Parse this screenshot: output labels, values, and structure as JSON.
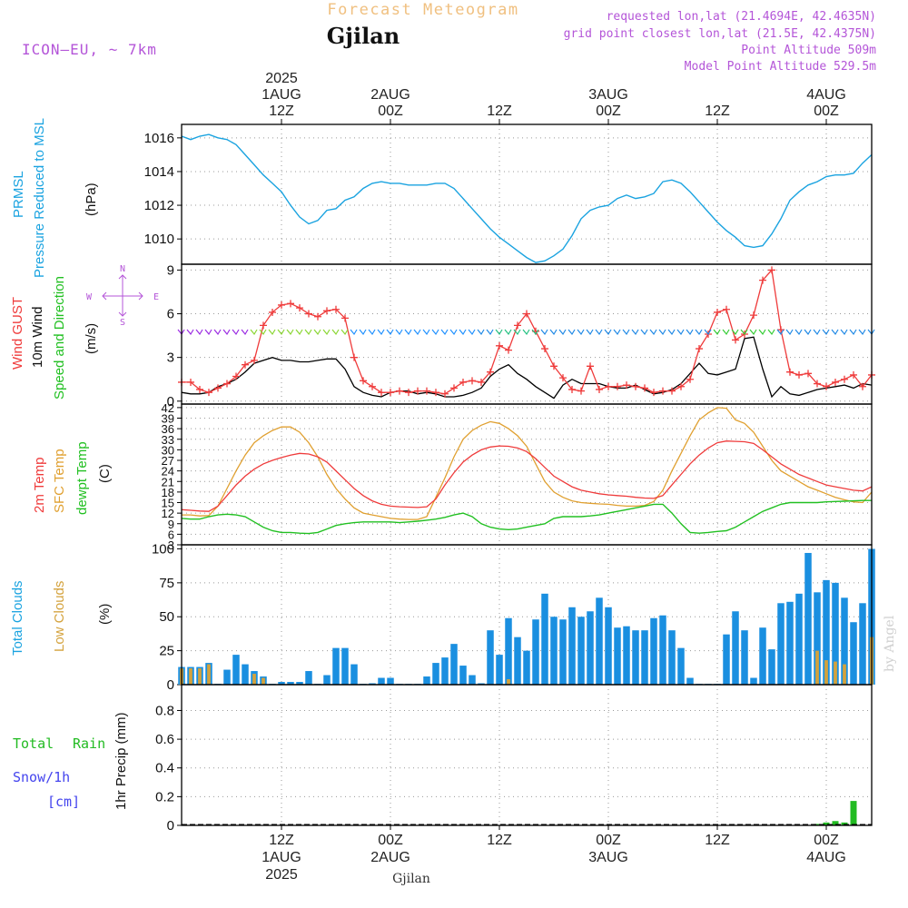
{
  "header": {
    "chart_title": "Forecast Meteogram",
    "location": "Gjilan",
    "model": "ICON–EU, ~ 7km",
    "requested": "requested lon,lat (21.4694E, 42.4635N)",
    "grid_point": "grid point closest lon,lat (21.5E, 42.4375N)",
    "point_altitude": "Point Altitude 509m",
    "model_altitude": "Model Point Altitude 529.5m",
    "footer_location": "Gjilan",
    "watermark": "by Angel"
  },
  "colors": {
    "pressure": "#1aa3e0",
    "gust": "#ef3b3b",
    "wind": "#000000",
    "wind_arrows": "#33cc33",
    "temp2m": "#ef3b3b",
    "sfc_temp": "#e0a030",
    "dewpoint": "#22c022",
    "total_clouds": "#1a8fe0",
    "low_clouds": "#d4a23c",
    "rain": "#22bb22",
    "snow": "#4444ee",
    "title_orange": "#f0c080",
    "purple": "#b455d8"
  },
  "time_axis": {
    "top_ticks": [
      {
        "hour": 12,
        "lines": [
          "2025",
          "1AUG",
          "12Z"
        ]
      },
      {
        "hour": 24,
        "lines": [
          "2AUG",
          "00Z"
        ]
      },
      {
        "hour": 36,
        "lines": [
          "12Z"
        ]
      },
      {
        "hour": 48,
        "lines": [
          "3AUG",
          "00Z"
        ]
      },
      {
        "hour": 60,
        "lines": [
          "12Z"
        ]
      },
      {
        "hour": 72,
        "lines": [
          "4AUG",
          "00Z"
        ]
      }
    ],
    "bottom_ticks": [
      {
        "hour": 12,
        "lines": [
          "12Z",
          "1AUG",
          "2025"
        ]
      },
      {
        "hour": 24,
        "lines": [
          "00Z",
          "2AUG"
        ]
      },
      {
        "hour": 36,
        "lines": [
          "12Z"
        ]
      },
      {
        "hour": 48,
        "lines": [
          "00Z",
          "3AUG"
        ]
      },
      {
        "hour": 60,
        "lines": [
          "12Z"
        ]
      },
      {
        "hour": 72,
        "lines": [
          "00Z",
          "4AUG"
        ]
      }
    ],
    "x_range_hours": [
      1,
      77
    ]
  },
  "panels": {
    "pressure": {
      "labels": [
        "PRMSL",
        "Pressure Reduced to MSL",
        "(hPa)"
      ],
      "ticks": [
        "1010",
        "1012",
        "1014",
        "1016"
      ]
    },
    "wind": {
      "labels": [
        "Wind GUST",
        "10m Wind",
        "Speed and Direction",
        "(m/s)"
      ],
      "compass": {
        "n": "N",
        "s": "S",
        "w": "W",
        "e": "E"
      },
      "ticks": [
        "0",
        "3",
        "6",
        "9"
      ]
    },
    "temp": {
      "labels": [
        "2m Temp",
        "SFC Temp",
        "dewpt Temp",
        "(C)"
      ],
      "ticks": [
        "3",
        "6",
        "9",
        "12",
        "15",
        "18",
        "21",
        "24",
        "27",
        "30",
        "33",
        "36",
        "39",
        "42"
      ]
    },
    "clouds": {
      "labels": [
        "Total Clouds",
        "Low Clouds",
        "(%)"
      ],
      "ticks": [
        "0",
        "25",
        "50",
        "75",
        "100"
      ]
    },
    "precip": {
      "labels": [
        "Total",
        "Rain",
        "Snow/1h",
        "[cm]",
        "1hr Precip (mm)"
      ],
      "ticks": [
        "0",
        "0.2",
        "0.4",
        "0.6",
        "0.8"
      ]
    }
  },
  "chart_data": [
    {
      "type": "line",
      "name": "PRMSL",
      "ylabel": "Pressure Reduced to MSL (hPa)",
      "ylim": [
        1008.5,
        1016.8
      ],
      "x": [
        1,
        2,
        3,
        4,
        5,
        6,
        7,
        8,
        9,
        10,
        11,
        12,
        13,
        14,
        15,
        16,
        17,
        18,
        19,
        20,
        21,
        22,
        23,
        24,
        25,
        26,
        27,
        28,
        29,
        30,
        31,
        32,
        33,
        34,
        35,
        36,
        37,
        38,
        39,
        40,
        41,
        42,
        43,
        44,
        45,
        46,
        47,
        48,
        49,
        50,
        51,
        52,
        53,
        54,
        55,
        56,
        57,
        58,
        59,
        60,
        61,
        62,
        63,
        64,
        65,
        66,
        67,
        68,
        69,
        70,
        71,
        72,
        73,
        74,
        75,
        76,
        77
      ],
      "series": [
        {
          "name": "PRMSL",
          "values": [
            1016.1,
            1015.9,
            1016.1,
            1016.2,
            1016.0,
            1015.9,
            1015.6,
            1015.0,
            1014.4,
            1013.8,
            1013.3,
            1012.8,
            1012.0,
            1011.3,
            1010.9,
            1011.1,
            1011.7,
            1011.8,
            1012.3,
            1012.5,
            1013.0,
            1013.3,
            1013.4,
            1013.3,
            1013.3,
            1013.2,
            1013.2,
            1013.2,
            1013.3,
            1013.3,
            1013.0,
            1012.4,
            1011.8,
            1011.2,
            1010.6,
            1010.1,
            1009.7,
            1009.3,
            1008.9,
            1008.6,
            1008.7,
            1009.0,
            1009.4,
            1010.2,
            1011.2,
            1011.7,
            1011.9,
            1012.0,
            1012.4,
            1012.6,
            1012.4,
            1012.5,
            1012.7,
            1013.4,
            1013.5,
            1013.3,
            1012.8,
            1012.2,
            1011.6,
            1011.0,
            1010.5,
            1010.1,
            1009.6,
            1009.5,
            1009.6,
            1010.3,
            1011.2,
            1012.3,
            1012.8,
            1013.2,
            1013.4,
            1013.7,
            1013.8,
            1013.8,
            1013.9,
            1014.5,
            1015.0
          ]
        }
      ]
    },
    {
      "type": "line",
      "name": "Wind",
      "ylabel": "(m/s)",
      "ylim": [
        -0.2,
        9.4
      ],
      "x": [
        1,
        2,
        3,
        4,
        5,
        6,
        7,
        8,
        9,
        10,
        11,
        12,
        13,
        14,
        15,
        16,
        17,
        18,
        19,
        20,
        21,
        22,
        23,
        24,
        25,
        26,
        27,
        28,
        29,
        30,
        31,
        32,
        33,
        34,
        35,
        36,
        37,
        38,
        39,
        40,
        41,
        42,
        43,
        44,
        45,
        46,
        47,
        48,
        49,
        50,
        51,
        52,
        53,
        54,
        55,
        56,
        57,
        58,
        59,
        60,
        61,
        62,
        63,
        64,
        65,
        66,
        67,
        68,
        69,
        70,
        71,
        72,
        73,
        74,
        75,
        76,
        77
      ],
      "series": [
        {
          "name": "Wind GUST",
          "values": [
            1.3,
            1.3,
            0.8,
            0.6,
            0.9,
            1.2,
            1.7,
            2.5,
            2.8,
            5.2,
            6.1,
            6.6,
            6.7,
            6.4,
            6.0,
            5.8,
            6.2,
            6.3,
            5.7,
            3.0,
            1.4,
            1.0,
            0.6,
            0.6,
            0.7,
            0.6,
            0.7,
            0.7,
            0.6,
            0.5,
            0.9,
            1.3,
            1.4,
            1.3,
            2.0,
            3.8,
            3.5,
            5.2,
            6.0,
            4.8,
            3.6,
            2.4,
            1.6,
            0.8,
            0.7,
            2.4,
            0.8,
            1.0,
            1.0,
            1.1,
            1.0,
            0.9,
            0.6,
            0.7,
            0.7,
            1.0,
            1.5,
            3.6,
            4.6,
            6.1,
            6.3,
            4.2,
            4.6,
            5.9,
            8.3,
            9.0,
            4.9,
            2.0,
            1.8,
            1.9,
            1.2,
            1.0,
            1.3,
            1.5,
            1.8,
            1.0,
            1.8
          ]
        },
        {
          "name": "10m Wind",
          "values": [
            0.6,
            0.5,
            0.5,
            0.6,
            1.0,
            1.2,
            1.5,
            2.0,
            2.6,
            2.8,
            3.0,
            2.8,
            2.8,
            2.7,
            2.7,
            2.8,
            2.9,
            2.9,
            2.2,
            1.0,
            0.6,
            0.4,
            0.3,
            0.6,
            0.7,
            0.7,
            0.5,
            0.6,
            0.5,
            0.3,
            0.3,
            0.4,
            0.6,
            0.9,
            1.7,
            2.2,
            2.5,
            1.9,
            1.5,
            1.0,
            0.6,
            0.2,
            1.1,
            1.5,
            1.2,
            1.2,
            1.2,
            1.0,
            0.9,
            0.9,
            1.1,
            0.8,
            0.5,
            0.6,
            0.8,
            1.2,
            1.9,
            2.6,
            1.9,
            1.8,
            2.0,
            2.2,
            4.3,
            4.4,
            2.2,
            0.3,
            1.0,
            0.5,
            0.4,
            0.6,
            0.8,
            0.9,
            1.0,
            1.1,
            0.9,
            1.2,
            1.1
          ]
        }
      ]
    },
    {
      "type": "line",
      "name": "Temperature",
      "ylabel": "(C)",
      "ylim": [
        3,
        43
      ],
      "x": [
        1,
        2,
        3,
        4,
        5,
        6,
        7,
        8,
        9,
        10,
        11,
        12,
        13,
        14,
        15,
        16,
        17,
        18,
        19,
        20,
        21,
        22,
        23,
        24,
        25,
        26,
        27,
        28,
        29,
        30,
        31,
        32,
        33,
        34,
        35,
        36,
        37,
        38,
        39,
        40,
        41,
        42,
        43,
        44,
        45,
        46,
        47,
        48,
        49,
        50,
        51,
        52,
        53,
        54,
        55,
        56,
        57,
        58,
        59,
        60,
        61,
        62,
        63,
        64,
        65,
        66,
        67,
        68,
        69,
        70,
        71,
        72,
        73,
        74,
        75,
        76,
        77
      ],
      "series": [
        {
          "name": "2m Temp",
          "values": [
            13,
            12.8,
            12.6,
            12.5,
            14,
            17,
            20,
            22.5,
            24.5,
            26,
            27,
            27.8,
            28.5,
            29,
            28.8,
            28,
            26.5,
            24,
            21.5,
            19,
            17,
            15.5,
            14.5,
            14,
            13.8,
            13.7,
            13.6,
            13.8,
            16,
            20,
            23.5,
            26.5,
            28.5,
            30,
            30.8,
            31.1,
            31,
            30.5,
            29.5,
            27.5,
            25,
            22.5,
            21,
            19.5,
            18.5,
            18,
            17.5,
            17.2,
            17,
            16.8,
            16.5,
            16.3,
            16.2,
            17,
            20,
            23,
            26,
            28.5,
            30.5,
            32,
            32.5,
            32.4,
            32.3,
            31.8,
            30,
            28,
            26,
            24.5,
            23,
            22,
            21,
            20,
            19.5,
            19,
            18.5,
            18.3,
            19.5
          ]
        },
        {
          "name": "SFC Temp",
          "values": [
            11.5,
            11.5,
            11.2,
            11.3,
            14,
            19,
            24,
            28.5,
            32,
            34,
            35.5,
            36.5,
            36.5,
            35,
            32,
            28,
            23,
            19,
            16,
            13.5,
            12,
            11.5,
            11,
            10.5,
            10.3,
            10.2,
            10.2,
            11,
            16.5,
            22,
            28,
            33,
            35.5,
            37,
            38,
            37.5,
            36,
            34,
            31,
            26,
            21,
            18,
            16.5,
            15.5,
            15,
            14.8,
            14.6,
            14.5,
            14.2,
            14,
            14,
            14.2,
            15.3,
            18.5,
            24,
            29,
            34,
            38.5,
            40.5,
            42,
            41.8,
            38.5,
            37.5,
            35,
            31,
            27,
            24,
            22.5,
            21,
            19.5,
            18.5,
            17.5,
            16.5,
            15.8,
            15.2,
            15,
            18
          ]
        },
        {
          "name": "dewpt Temp",
          "values": [
            10.5,
            10.3,
            10.3,
            11,
            11.5,
            11.7,
            11.5,
            11,
            9.5,
            8,
            7,
            6.5,
            6.5,
            6.3,
            6.2,
            6.5,
            7.5,
            8.5,
            9,
            9.3,
            9.5,
            9.5,
            9.5,
            9.5,
            9.3,
            9.5,
            9.7,
            10,
            10.3,
            10.8,
            11.5,
            12,
            11,
            9,
            8,
            7.5,
            7.3,
            7.5,
            8,
            8.5,
            9,
            10.5,
            11,
            11,
            11,
            11.2,
            11.5,
            12,
            12.5,
            13,
            13.5,
            14,
            14.5,
            14.5,
            12,
            9,
            6.5,
            6.3,
            6.5,
            6.8,
            7,
            8,
            9.5,
            11,
            12.5,
            13.5,
            14.5,
            15,
            15,
            15,
            15,
            15.2,
            15.3,
            15.4,
            15.5,
            15.6,
            15.6
          ]
        }
      ]
    },
    {
      "type": "bar",
      "name": "Clouds",
      "ylabel": "(%)",
      "ylim": [
        0,
        103
      ],
      "x": [
        1,
        2,
        3,
        4,
        5,
        6,
        7,
        8,
        9,
        10,
        11,
        12,
        13,
        14,
        15,
        16,
        17,
        18,
        19,
        20,
        21,
        22,
        23,
        24,
        25,
        26,
        27,
        28,
        29,
        30,
        31,
        32,
        33,
        34,
        35,
        36,
        37,
        38,
        39,
        40,
        41,
        42,
        43,
        44,
        45,
        46,
        47,
        48,
        49,
        50,
        51,
        52,
        53,
        54,
        55,
        56,
        57,
        58,
        59,
        60,
        61,
        62,
        63,
        64,
        65,
        66,
        67,
        68,
        69,
        70,
        71,
        72,
        73,
        74,
        75,
        76,
        77
      ],
      "series": [
        {
          "name": "Total Clouds",
          "values": [
            13,
            13,
            13,
            16,
            0,
            11,
            22,
            15,
            10,
            6,
            0,
            2,
            2,
            2,
            10,
            0,
            7,
            27,
            27,
            15,
            0,
            1,
            5,
            5,
            0,
            0,
            0,
            6,
            16,
            20,
            30,
            14,
            7,
            1,
            40,
            22,
            49,
            35,
            25,
            48,
            67,
            50,
            48,
            57,
            50,
            54,
            64,
            57,
            42,
            43,
            40,
            40,
            49,
            51,
            40,
            27,
            5,
            0,
            0,
            0,
            37,
            54,
            40,
            5,
            42,
            26,
            60,
            61,
            67,
            97,
            68,
            77,
            75,
            64,
            46,
            60,
            100
          ]
        },
        {
          "name": "Low Clouds",
          "values": [
            12,
            12,
            12,
            15,
            0,
            0,
            0,
            0,
            8,
            5,
            0,
            0,
            0,
            0,
            0,
            0,
            0,
            0,
            0,
            0,
            0,
            0,
            0,
            0,
            0,
            0,
            0,
            0,
            0,
            0,
            0,
            0,
            0,
            0,
            0,
            0,
            4,
            0,
            0,
            0,
            0,
            0,
            0,
            0,
            0,
            0,
            0,
            0,
            0,
            0,
            0,
            0,
            0,
            0,
            0,
            0,
            0,
            0,
            0,
            0,
            0,
            0,
            0,
            0,
            0,
            0,
            0,
            0,
            0,
            0,
            25,
            18,
            17,
            15,
            0,
            0,
            35
          ]
        }
      ]
    },
    {
      "type": "bar",
      "name": "Precipitation",
      "ylabel": "1hr Precip (mm)",
      "ylim": [
        0,
        0.98
      ],
      "x": [
        71,
        72,
        73,
        74,
        75
      ],
      "series": [
        {
          "name": "Total Rain",
          "values": [
            0.01,
            0.02,
            0.03,
            0.02,
            0.17
          ]
        }
      ]
    }
  ]
}
